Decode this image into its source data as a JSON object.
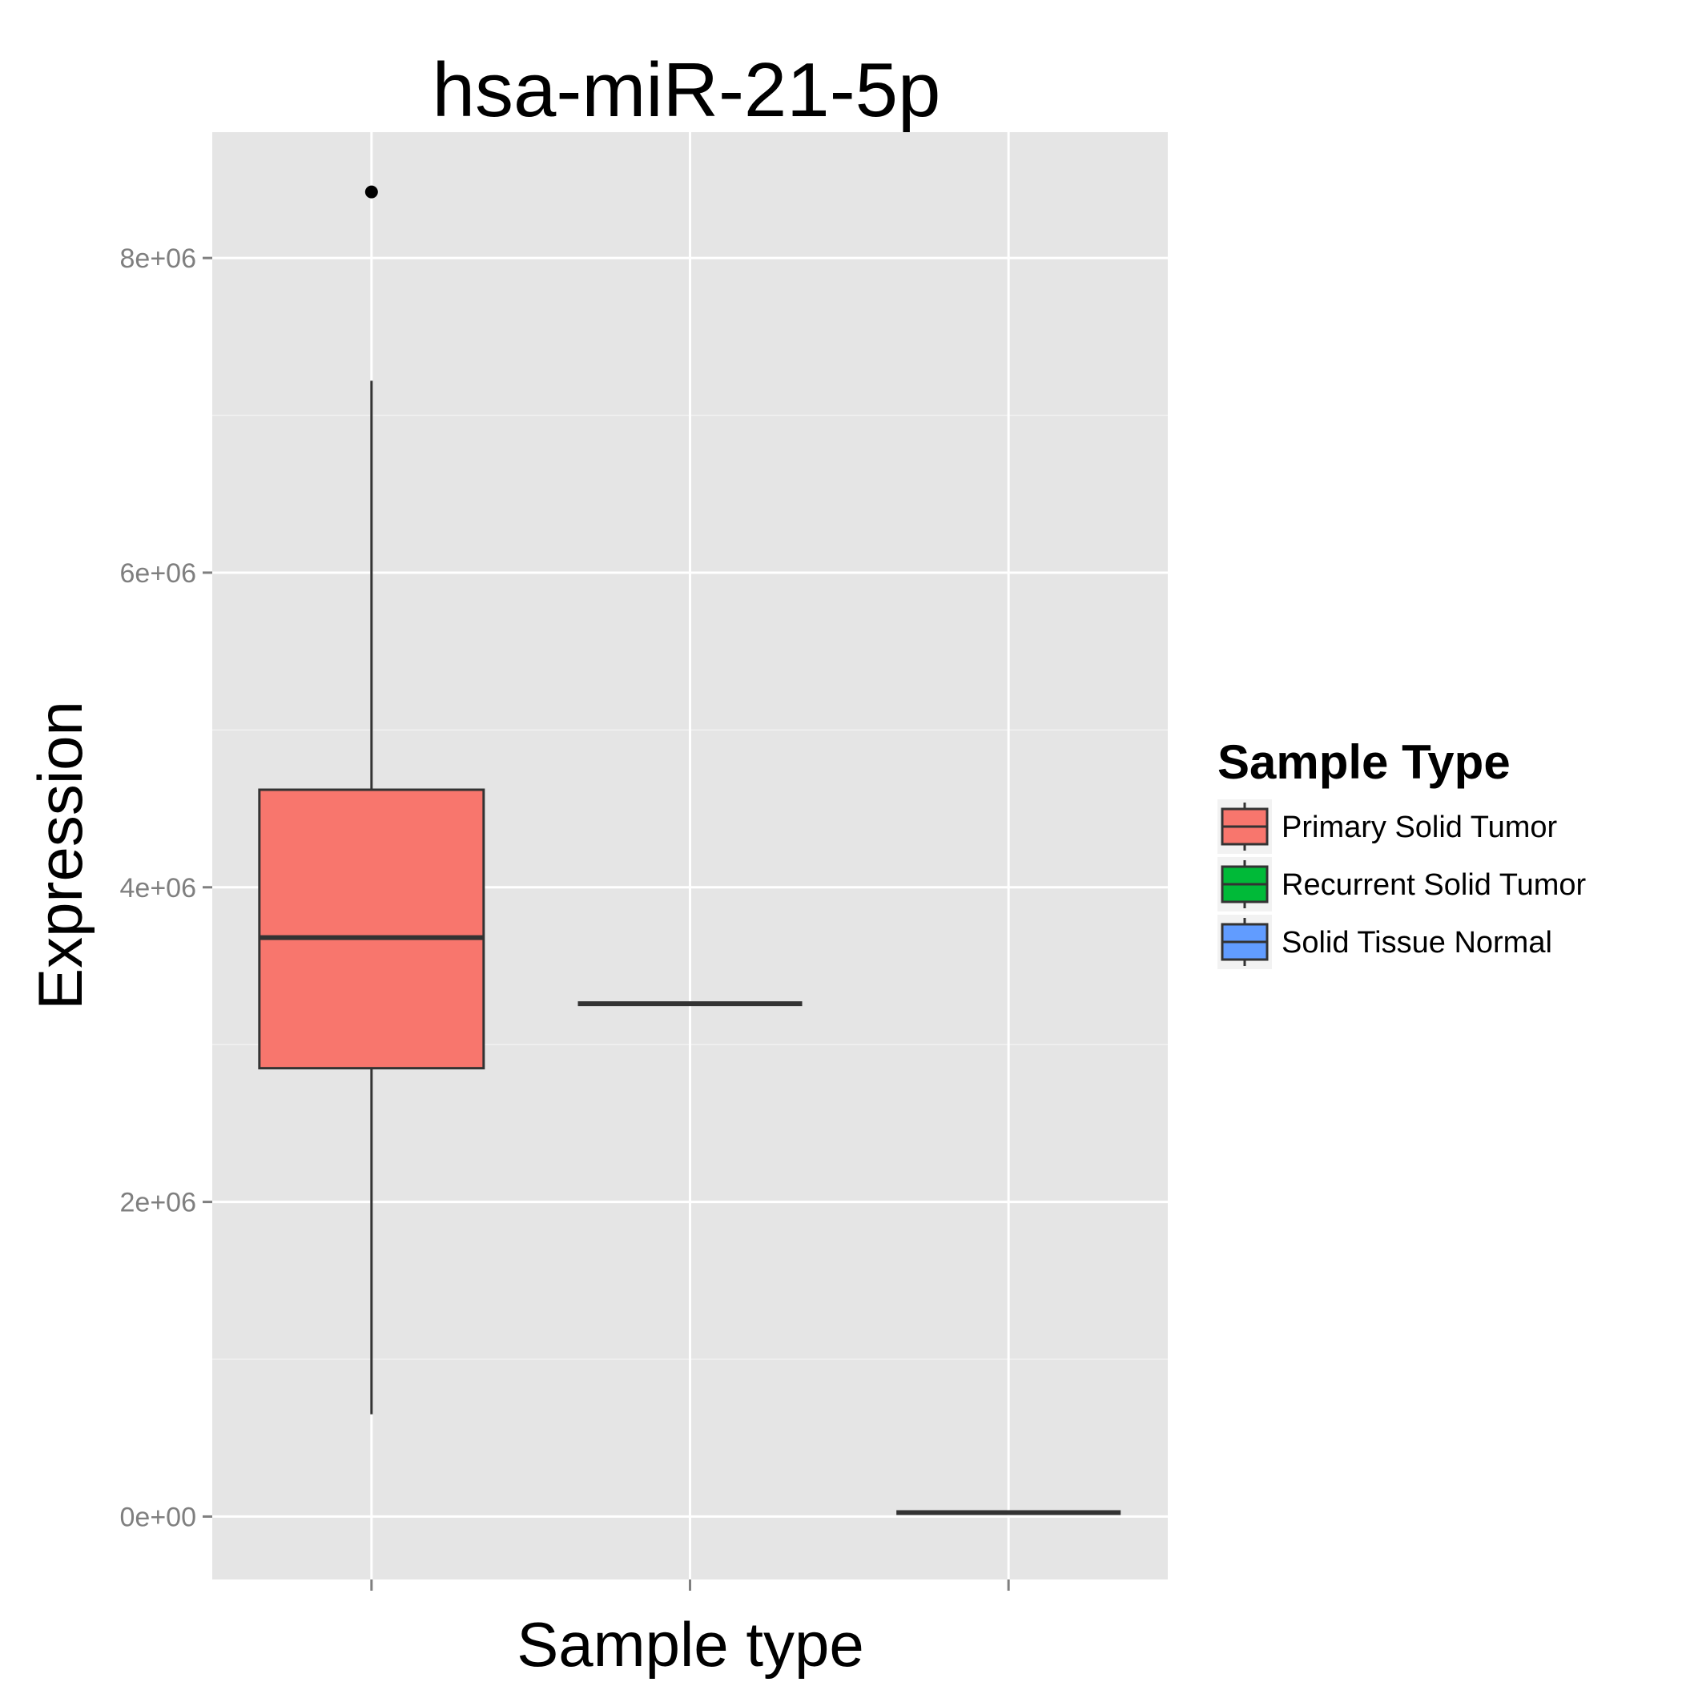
{
  "chart_data": {
    "type": "box",
    "title": "hsa-miR-21-5p",
    "xlabel": "Sample type",
    "ylabel": "Expression",
    "ylim": [
      -400000,
      8800000
    ],
    "y_ticks": [
      0,
      2000000,
      4000000,
      6000000,
      8000000
    ],
    "y_tick_labels": [
      "0e+00",
      "2e+06",
      "4e+06",
      "6e+06",
      "8e+06"
    ],
    "x_tick_labels": [
      "",
      "",
      ""
    ],
    "grid": true,
    "panel_color": "#e5e5e5",
    "series": [
      {
        "name": "Primary Solid Tumor",
        "color": "#f8766d",
        "whisker_low": 650000,
        "q1": 2850000,
        "median": 3680000,
        "q3": 4620000,
        "whisker_high": 7220000,
        "outliers": [
          8420000
        ]
      },
      {
        "name": "Recurrent Solid Tumor",
        "color": "#00ba38",
        "whisker_low": 3260000,
        "q1": 3260000,
        "median": 3260000,
        "q3": 3260000,
        "whisker_high": 3260000,
        "outliers": []
      },
      {
        "name": "Solid Tissue Normal",
        "color": "#619cff",
        "whisker_low": 25000,
        "q1": 25000,
        "median": 25000,
        "q3": 25000,
        "whisker_high": 25000,
        "outliers": []
      }
    ],
    "legend": {
      "title": "Sample Type",
      "position": "right"
    }
  }
}
